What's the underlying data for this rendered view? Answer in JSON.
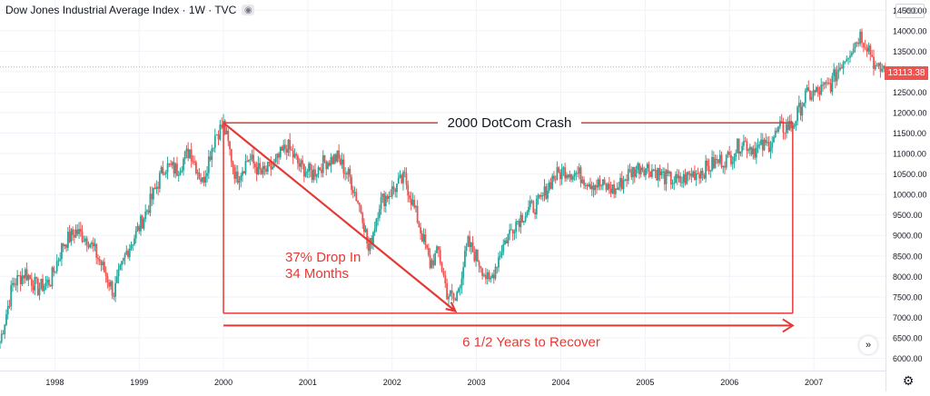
{
  "header": {
    "title": "Dow Jones Industrial Average Index · 1W · TVC",
    "currency": "USD"
  },
  "last_price_label": "13113.38",
  "colors": {
    "up": "#26a69a",
    "down": "#ef5350",
    "annotation": "#e53935"
  },
  "icons": {
    "visibility": "eye-icon",
    "scroll": "chevron-right-double-icon",
    "settings": "gear-icon"
  },
  "chart_data": {
    "type": "candlestick",
    "title": "",
    "xlabel": "",
    "ylabel": "",
    "x_ticks": [
      "1998",
      "1999",
      "2000",
      "2001",
      "2002",
      "2003",
      "2004",
      "2005",
      "2006",
      "2007"
    ],
    "y_ticks": [
      "6000.00",
      "6500.00",
      "7000.00",
      "7500.00",
      "8000.00",
      "8500.00",
      "9000.00",
      "9500.00",
      "10000.00",
      "10500.00",
      "11000.00",
      "11500.00",
      "12000.00",
      "12500.00",
      "13000.00",
      "13500.00",
      "14000.00",
      "14500.00"
    ],
    "ylim": [
      5700,
      14750
    ],
    "xlim": [
      1997.35,
      2007.85
    ],
    "grid": true,
    "series": [
      {
        "x": [
          1997.35,
          1997.5,
          1997.65,
          1997.8,
          1997.95,
          1998.1,
          1998.25,
          1998.4,
          1998.55,
          1998.7,
          1998.85,
          1999.0,
          1999.15,
          1999.3,
          1999.45,
          1999.6,
          1999.75,
          1999.9,
          2000.0,
          2000.15,
          2000.3,
          2000.45,
          2000.6,
          2000.75,
          2000.9,
          2001.05,
          2001.2,
          2001.35,
          2001.5,
          2001.65,
          2001.72,
          2001.85,
          2002.0,
          2002.15,
          2002.3,
          2002.45,
          2002.55,
          2002.65,
          2002.75,
          2002.9,
          2003.05,
          2003.15,
          2003.3,
          2003.45,
          2003.6,
          2003.75,
          2003.9,
          2004.05,
          2004.2,
          2004.35,
          2004.5,
          2004.65,
          2004.8,
          2004.95,
          2005.1,
          2005.25,
          2005.4,
          2005.55,
          2005.7,
          2005.85,
          2006.0,
          2006.15,
          2006.3,
          2006.45,
          2006.6,
          2006.75,
          2006.9,
          2007.05,
          2007.2,
          2007.35,
          2007.45,
          2007.55,
          2007.65,
          2007.75,
          2007.85
        ],
        "close": [
          6400,
          7800,
          8100,
          7700,
          7900,
          8800,
          9100,
          8900,
          8300,
          7600,
          8600,
          9200,
          9900,
          10700,
          10600,
          11100,
          10300,
          11450,
          11700,
          10400,
          10900,
          10500,
          10700,
          11200,
          10700,
          10500,
          10800,
          10900,
          10400,
          9500,
          8600,
          9800,
          10100,
          10400,
          9400,
          8300,
          8600,
          7600,
          7400,
          8800,
          8300,
          7800,
          8700,
          9300,
          9600,
          9800,
          10400,
          10600,
          10500,
          10300,
          10200,
          10100,
          10500,
          10700,
          10600,
          10400,
          10300,
          10500,
          10600,
          10800,
          10900,
          11300,
          11100,
          11200,
          11600,
          11700,
          12400,
          12500,
          12700,
          13300,
          13600,
          13900,
          13600,
          13000,
          13113
        ]
      }
    ],
    "annotations": {
      "box_title": "2000 DotCom Crash",
      "drop_label_line1": "37% Drop In",
      "drop_label_line2": "34 Months",
      "recover_label": "6 1/2 Years to Recover",
      "box_x": [
        2000.0,
        2006.75
      ],
      "box_y": [
        7100,
        11750
      ],
      "drop_from": [
        2000.0,
        11750
      ],
      "drop_to": [
        2002.75,
        7150
      ],
      "recover_arrow_y": 6800
    }
  }
}
